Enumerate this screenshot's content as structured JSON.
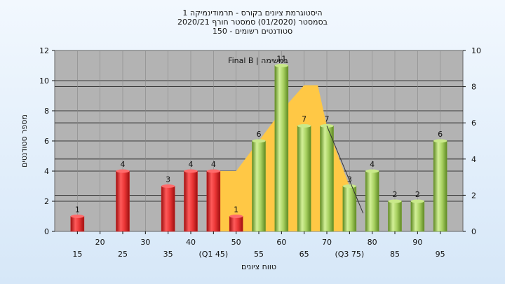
{
  "chart_data": {
    "type": "bar",
    "title_lines": [
      "היסטוגרמת ציונים בקורס - תרמודינמיקה 1",
      "בסמסטר  (01/2020)  סמסטר חורף 2020/21",
      "סטודנטים רשומים - 150"
    ],
    "annotation": "Final B | במשימה",
    "ylabel": "מספר סטודנטים",
    "xlabel": "טווח ציונים",
    "ylim": [
      0,
      12
    ],
    "yticks": [
      0,
      2,
      4,
      6,
      8,
      10,
      12
    ],
    "y2lim": [
      0,
      10
    ],
    "y2ticks": [
      0,
      2,
      4,
      6,
      8,
      10
    ],
    "x_tick_labels": [
      {
        "x": 15,
        "label": "15",
        "row": 2
      },
      {
        "x": 20,
        "label": "20",
        "row": 1
      },
      {
        "x": 25,
        "label": "25",
        "row": 2
      },
      {
        "x": 30,
        "label": "30",
        "row": 1
      },
      {
        "x": 35,
        "label": "35",
        "row": 2
      },
      {
        "x": 40,
        "label": "40",
        "row": 1
      },
      {
        "x": 45,
        "label": "(Q1 45)",
        "row": 2
      },
      {
        "x": 50,
        "label": "50",
        "row": 1
      },
      {
        "x": 55,
        "label": "55",
        "row": 2
      },
      {
        "x": 60,
        "label": "60",
        "row": 1
      },
      {
        "x": 65,
        "label": "65",
        "row": 2
      },
      {
        "x": 70,
        "label": "70",
        "row": 1
      },
      {
        "x": 75,
        "label": "(Q3 75)",
        "row": 2
      },
      {
        "x": 80,
        "label": "80",
        "row": 1
      },
      {
        "x": 85,
        "label": "85",
        "row": 2
      },
      {
        "x": 90,
        "label": "90",
        "row": 1
      },
      {
        "x": 95,
        "label": "95",
        "row": 2
      }
    ],
    "bars": [
      {
        "x": 15,
        "value": 1,
        "color": "red"
      },
      {
        "x": 25,
        "value": 4,
        "color": "red"
      },
      {
        "x": 35,
        "value": 3,
        "color": "red"
      },
      {
        "x": 40,
        "value": 4,
        "color": "red"
      },
      {
        "x": 45,
        "value": 4,
        "color": "red"
      },
      {
        "x": 50,
        "value": 1,
        "color": "red"
      },
      {
        "x": 55,
        "value": 6,
        "color": "green"
      },
      {
        "x": 60,
        "value": 11,
        "color": "green"
      },
      {
        "x": 65,
        "value": 7,
        "color": "green"
      },
      {
        "x": 70,
        "value": 7,
        "color": "green"
      },
      {
        "x": 75,
        "value": 3,
        "color": "green"
      },
      {
        "x": 80,
        "value": 4,
        "color": "green"
      },
      {
        "x": 85,
        "value": 2,
        "color": "green"
      },
      {
        "x": 90,
        "value": 2,
        "color": "green"
      },
      {
        "x": 95,
        "value": 6,
        "color": "green"
      }
    ],
    "area": [
      {
        "x": 45,
        "y": 4
      },
      {
        "x": 50,
        "y": 4
      },
      {
        "x": 55,
        "y": 6
      },
      {
        "x": 60,
        "y": 8
      },
      {
        "x": 65,
        "y": 9.7
      },
      {
        "x": 68,
        "y": 9.7
      },
      {
        "x": 70,
        "y": 7
      },
      {
        "x": 75,
        "y": 3
      }
    ],
    "trend_line": [
      {
        "x": 70,
        "y": 7
      },
      {
        "x": 78,
        "y": 1.2
      }
    ],
    "colors": {
      "plot_bg": "#b3b3b3",
      "area": "#ffc845",
      "red_light": "#ff6b6b",
      "red_dark": "#c81e1e",
      "green_light": "#c9e98a",
      "green_dark": "#6f9a2b"
    }
  }
}
